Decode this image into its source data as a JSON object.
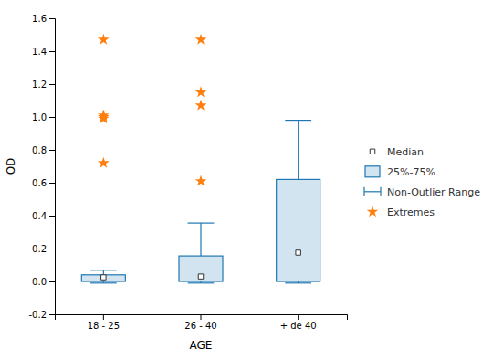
{
  "chart_data": {
    "type": "box",
    "xlabel": "AGE",
    "ylabel": "OD",
    "categories": [
      "18 - 25",
      "26 - 40",
      "+ de 40"
    ],
    "boxes": [
      {
        "q1": 0.0,
        "q3": 0.04,
        "median": 0.025,
        "whisker_low": -0.01,
        "whisker_high": 0.068,
        "outliers": [
          0.72,
          0.99,
          1.0,
          1.01,
          1.47
        ]
      },
      {
        "q1": 0.0,
        "q3": 0.155,
        "median": 0.03,
        "whisker_low": -0.01,
        "whisker_high": 0.355,
        "outliers": [
          0.61,
          1.07,
          1.15,
          1.47
        ]
      },
      {
        "q1": 0.0,
        "q3": 0.62,
        "median": 0.175,
        "whisker_low": -0.01,
        "whisker_high": 0.98,
        "outliers": []
      }
    ],
    "ylim": [
      -0.2,
      1.6
    ],
    "yticks": [
      -0.2,
      {
        "value": 0.0,
        "label": "0.0"
      },
      0.2,
      0.4,
      0.6,
      0.8,
      {
        "value": 1.0,
        "label": "1.0"
      },
      1.2,
      1.4,
      1.6
    ],
    "grid": false,
    "legend": "right",
    "legend_items": [
      "Median",
      "25%-75%",
      "Non-Outlier Range",
      "Extremes"
    ]
  }
}
